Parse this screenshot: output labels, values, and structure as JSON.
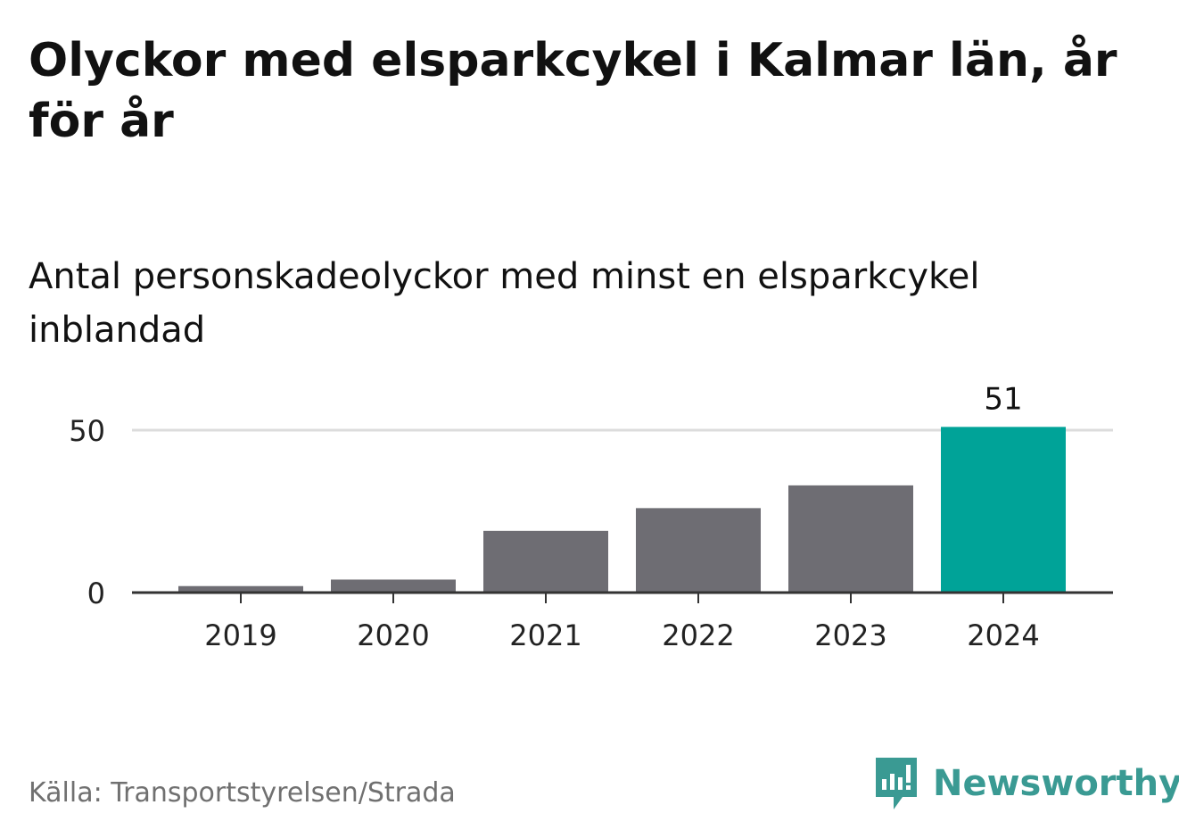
{
  "title": "Olyckor med elsparkcykel i Kalmar län, år för år",
  "subtitle": "Antal personskadeolyckor med minst en elsparkcykel inblandad",
  "source": "Källa: Transportstyrelsen/Strada",
  "brand": {
    "name": "Newsworthy",
    "color": "#3a9a93",
    "icon": "newsworthy-logo-icon"
  },
  "chart_data": {
    "type": "bar",
    "categories": [
      "2019",
      "2020",
      "2021",
      "2022",
      "2023",
      "2024"
    ],
    "values": [
      2,
      4,
      19,
      26,
      33,
      51
    ],
    "ylim": [
      0,
      60
    ],
    "yticks": [
      0,
      50
    ],
    "data_labels": [
      {
        "category": "2024",
        "value": 51,
        "text": "51"
      }
    ],
    "highlight": "2024",
    "colors": {
      "bar": "#6e6d73",
      "highlight": "#00a398",
      "gridline": "#dcdcdc",
      "axis": "#333333"
    },
    "grid": true,
    "xlabel": "",
    "ylabel": ""
  }
}
